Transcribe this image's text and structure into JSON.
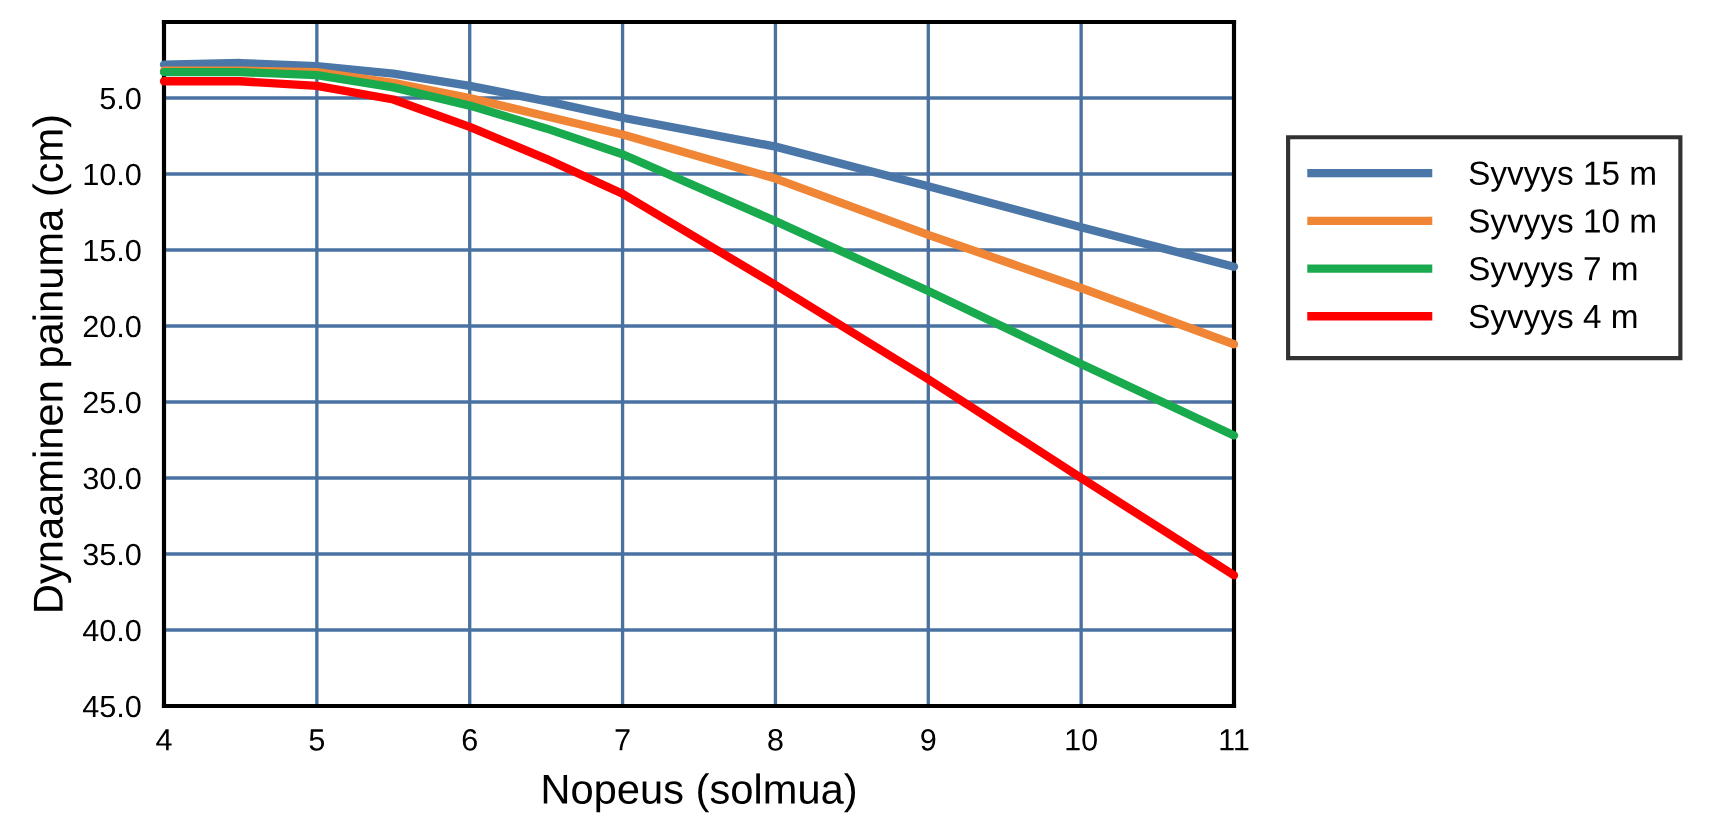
{
  "chart_data": {
    "type": "line",
    "xlabel": "Nopeus (solmua)",
    "ylabel": "Dynaaminen painuma (cm)",
    "x": [
      4,
      4.5,
      5,
      5.5,
      6,
      6.5,
      7,
      8,
      9,
      10,
      11
    ],
    "series": [
      {
        "name": "Syvyys 15 m",
        "color": "#4a76a8",
        "values": [
          2.8,
          2.7,
          2.9,
          3.4,
          4.2,
          5.2,
          6.3,
          8.2,
          10.8,
          13.5,
          16.1
        ]
      },
      {
        "name": "Syvyys 10 m",
        "color": "#f08536",
        "values": [
          3.2,
          3.2,
          3.3,
          4.0,
          5.0,
          6.2,
          7.4,
          10.3,
          14.0,
          17.5,
          21.2
        ]
      },
      {
        "name": "Syvyys 7 m",
        "color": "#1aaa4e",
        "values": [
          3.3,
          3.3,
          3.5,
          4.3,
          5.5,
          7.0,
          8.7,
          13.1,
          17.7,
          22.5,
          27.2
        ]
      },
      {
        "name": "Syvyys 4 m",
        "color": "#ff0000",
        "values": [
          3.9,
          3.9,
          4.2,
          5.1,
          6.9,
          9.0,
          11.3,
          17.3,
          23.5,
          30.0,
          36.4
        ]
      }
    ],
    "xlim": [
      4,
      11
    ],
    "xticks": [
      4,
      5,
      6,
      7,
      8,
      9,
      10,
      11
    ],
    "ylim": [
      45,
      0
    ],
    "yticks": [
      {
        "value": 5,
        "label": "5.0"
      },
      {
        "value": 10,
        "label": "10.0"
      },
      {
        "value": 15,
        "label": "15.0"
      },
      {
        "value": 20,
        "label": "20.0"
      },
      {
        "value": 25,
        "label": "25.0"
      },
      {
        "value": 30,
        "label": "30.0"
      },
      {
        "value": 35,
        "label": "35.0"
      },
      {
        "value": 40,
        "label": "40.0"
      },
      {
        "value": 45,
        "label": "45.0"
      }
    ],
    "grid": true,
    "legend": "right",
    "marker": "none",
    "line_style": "solid"
  }
}
